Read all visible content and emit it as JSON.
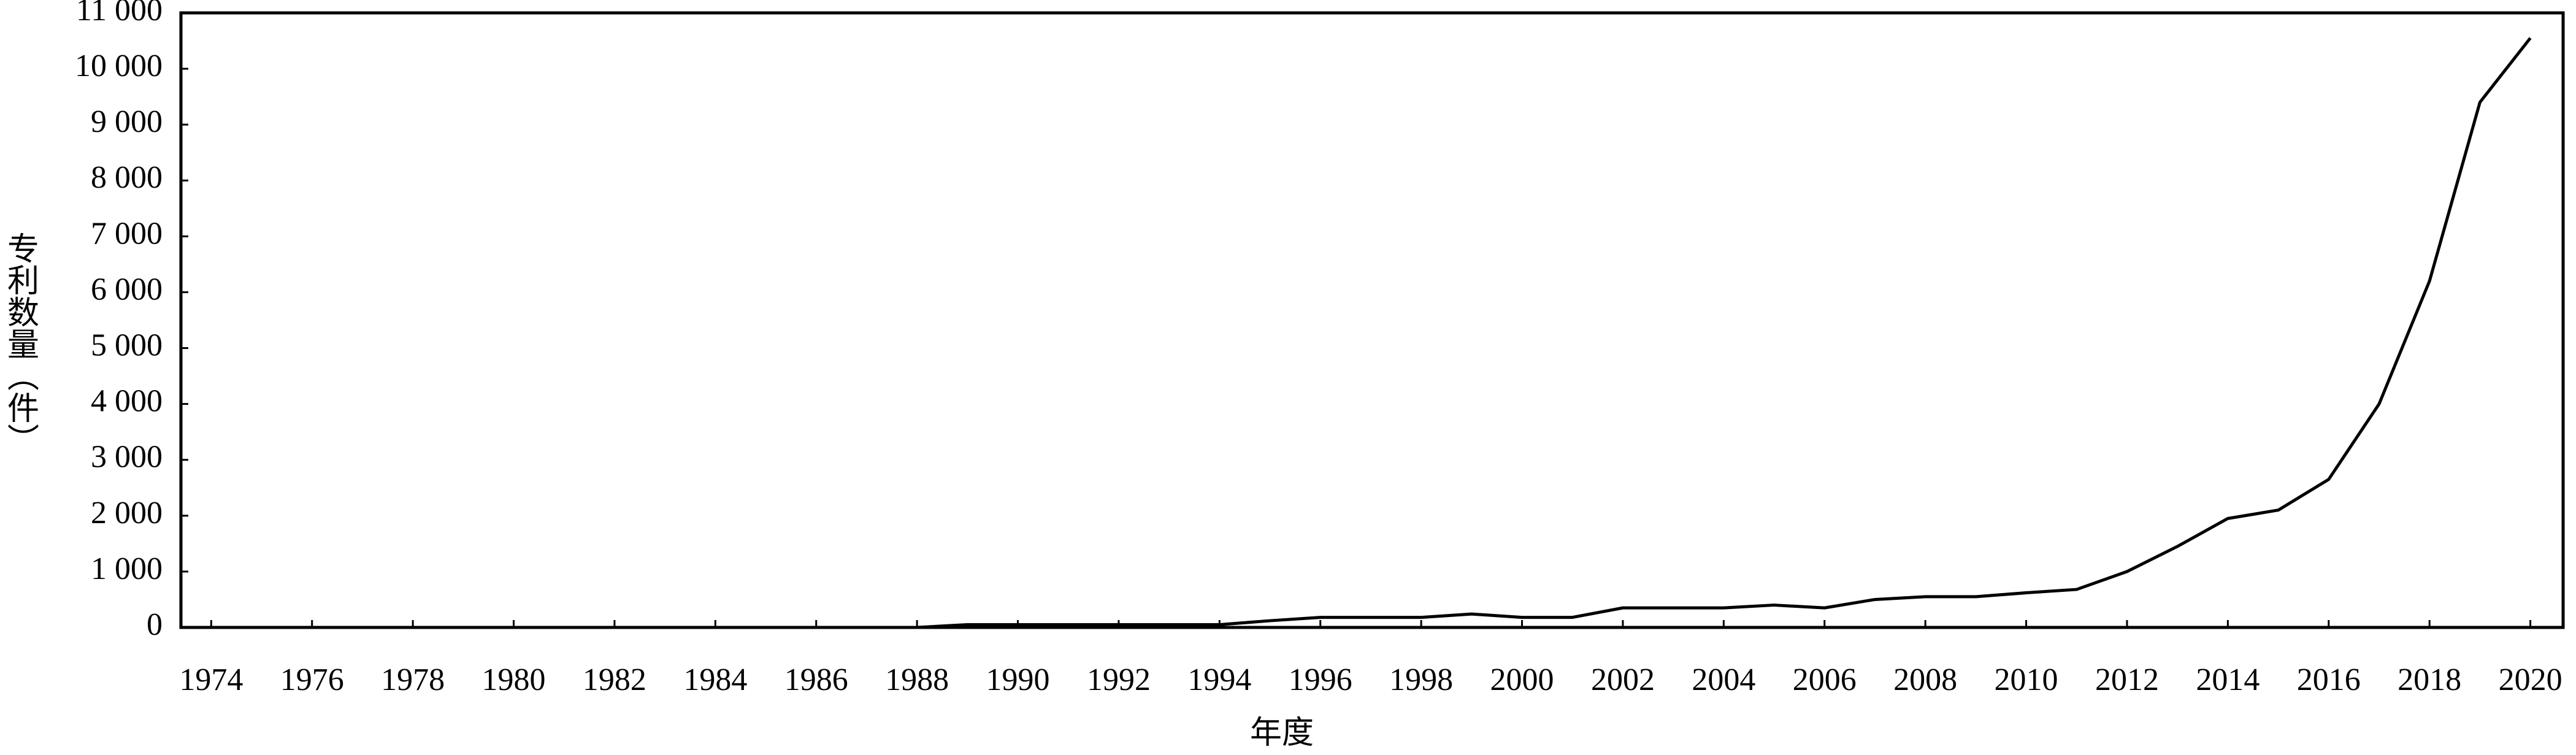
{
  "chart_data": {
    "type": "line",
    "x_label": "年度",
    "y_label": "专利数量（件）",
    "x": [
      1974,
      1975,
      1976,
      1977,
      1978,
      1979,
      1980,
      1981,
      1982,
      1983,
      1984,
      1985,
      1986,
      1987,
      1988,
      1989,
      1990,
      1991,
      1992,
      1993,
      1994,
      1995,
      1996,
      1997,
      1998,
      1999,
      2000,
      2001,
      2002,
      2003,
      2004,
      2005,
      2006,
      2007,
      2008,
      2009,
      2010,
      2011,
      2012,
      2013,
      2014,
      2015,
      2016,
      2017,
      2018,
      2019,
      2020
    ],
    "series": [
      {
        "name": "专利数量",
        "color": "#000000",
        "values": [
          0,
          0,
          0,
          0,
          0,
          0,
          0,
          0,
          0,
          0,
          0,
          0,
          0,
          0,
          0,
          50,
          50,
          50,
          50,
          50,
          50,
          120,
          180,
          180,
          180,
          240,
          180,
          180,
          350,
          350,
          350,
          400,
          350,
          500,
          550,
          550,
          620,
          680,
          1000,
          1450,
          1950,
          2100,
          2650,
          4000,
          6200,
          9400,
          10550
        ]
      }
    ],
    "xlim": [
      1973.4,
      2020.65
    ],
    "xticks": [
      1974,
      1976,
      1978,
      1980,
      1982,
      1984,
      1986,
      1988,
      1990,
      1992,
      1994,
      1996,
      1998,
      2000,
      2002,
      2004,
      2006,
      2008,
      2010,
      2012,
      2014,
      2016,
      2018,
      2020
    ],
    "ylim": [
      0,
      11000
    ],
    "yticks": [
      0,
      {
        "value": 1000,
        "label": "1 000"
      },
      {
        "value": 2000,
        "label": "2 000"
      },
      {
        "value": 3000,
        "label": "3 000"
      },
      {
        "value": 4000,
        "label": "4 000"
      },
      {
        "value": 5000,
        "label": "5 000"
      },
      {
        "value": 6000,
        "label": "6 000"
      },
      {
        "value": 7000,
        "label": "7 000"
      },
      {
        "value": 8000,
        "label": "8 000"
      },
      {
        "value": 9000,
        "label": "9 000"
      },
      {
        "value": 10000,
        "label": "10 000"
      },
      {
        "value": 11000,
        "label": "11 000"
      }
    ],
    "grid": false
  }
}
